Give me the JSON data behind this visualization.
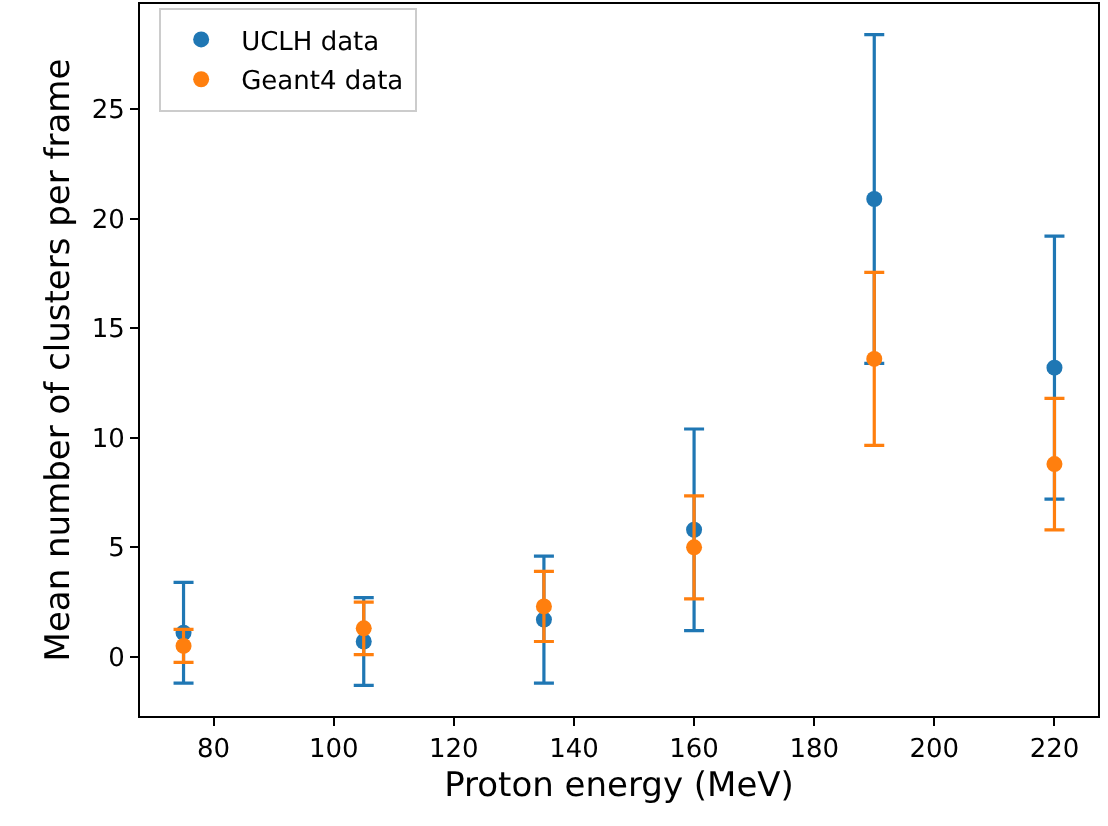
{
  "chart_data": {
    "type": "scatter",
    "xlabel": "Proton energy (MeV)",
    "ylabel": "Mean number of clusters per frame",
    "x": [
      75,
      105,
      135,
      160,
      190,
      220
    ],
    "series": [
      {
        "name": "UCLH data",
        "color": "#1f77b4",
        "values": [
          1.1,
          0.7,
          1.7,
          5.8,
          20.9,
          13.2
        ],
        "errors": [
          2.3,
          2.0,
          2.9,
          4.6,
          7.5,
          6.0
        ]
      },
      {
        "name": "Geant4 data",
        "color": "#ff7f0e",
        "values": [
          0.5,
          1.3,
          2.3,
          5.0,
          13.6,
          8.8
        ],
        "errors": [
          0.75,
          1.2,
          1.6,
          2.35,
          3.95,
          3.0
        ]
      }
    ],
    "xlim": [
      67.75,
      227.25
    ],
    "xticks": [
      80,
      100,
      120,
      140,
      160,
      180,
      200,
      220
    ],
    "ylim": [
      -2.7,
      29.8
    ],
    "yticks": [
      0,
      5,
      10,
      15,
      20,
      25
    ],
    "grid": false,
    "legend": "top left",
    "marker": "circle"
  }
}
